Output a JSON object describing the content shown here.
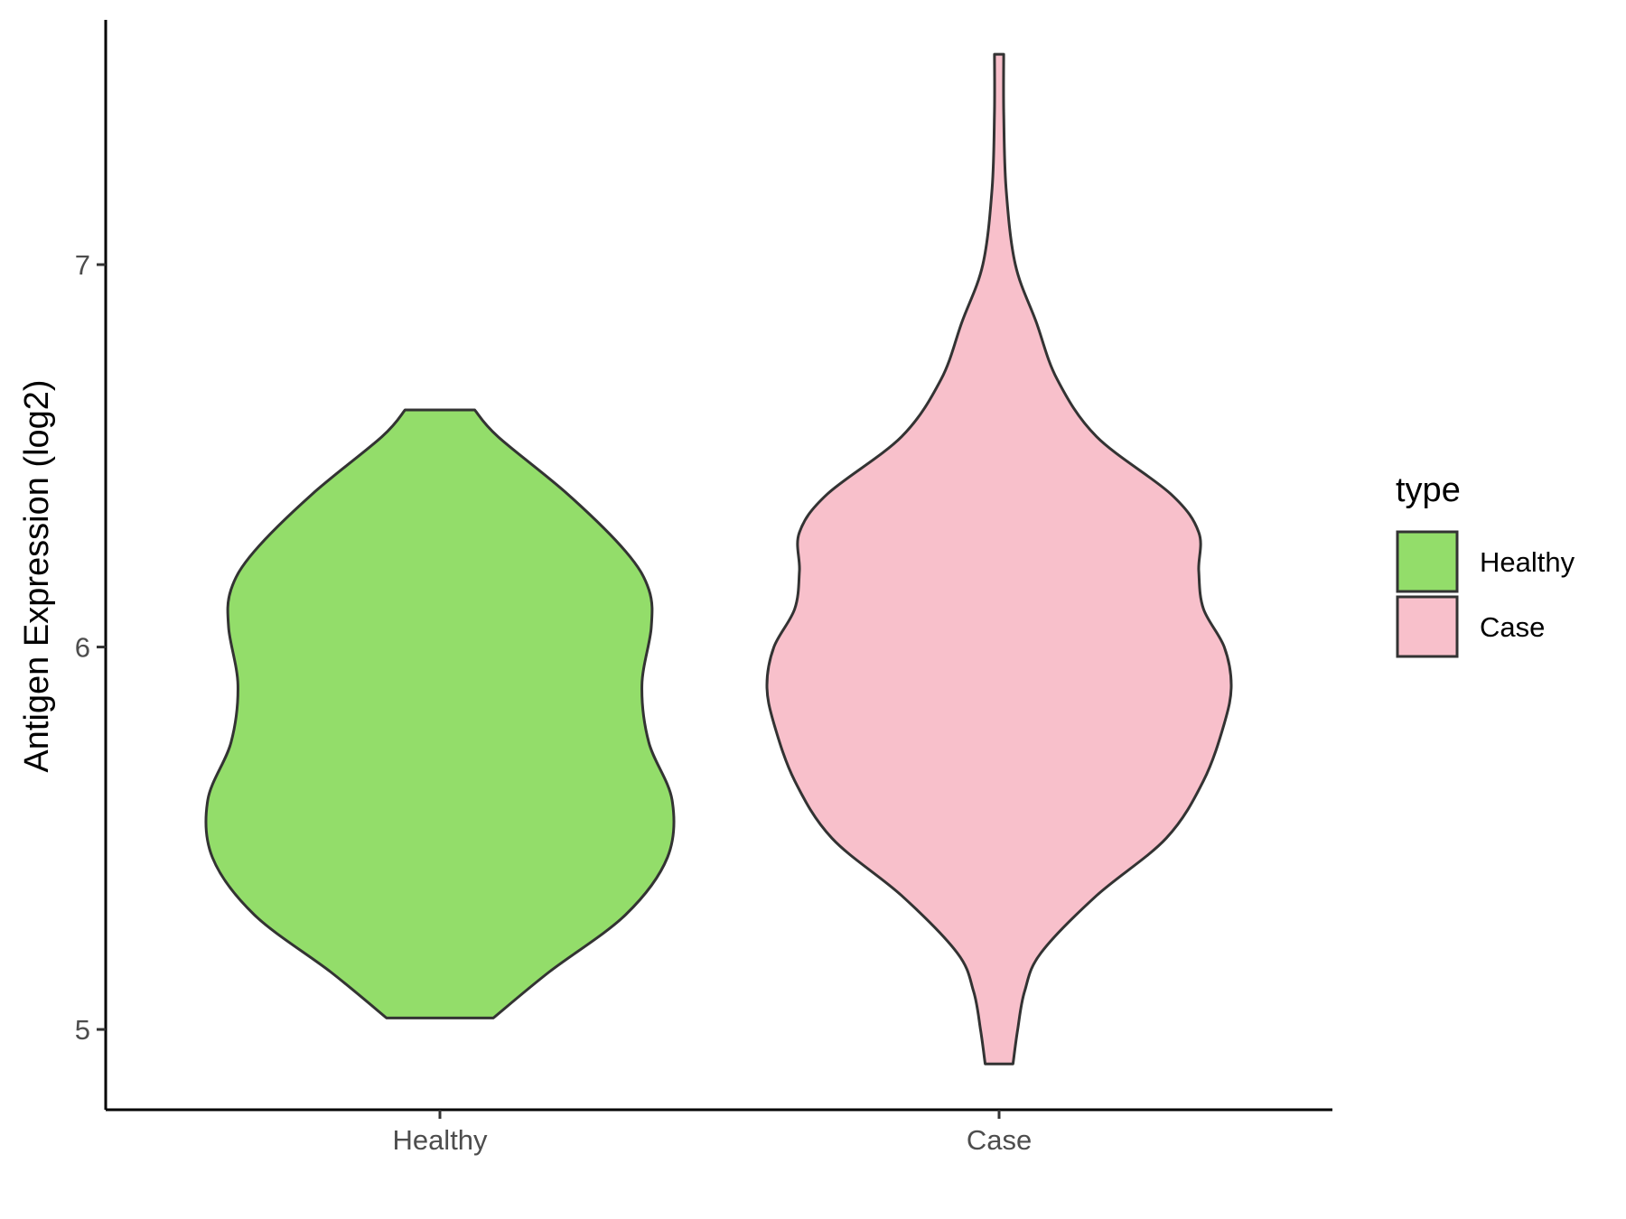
{
  "chart_data": {
    "type": "violin",
    "title": "",
    "xlabel": "",
    "ylabel": "Antigen Expression (log2)",
    "categories": [
      "Healthy",
      "Case"
    ],
    "ylim": [
      4.79,
      7.64
    ],
    "yticks": [
      5,
      6,
      7
    ],
    "grid": false,
    "legend": {
      "title": "type",
      "placement": "right",
      "entries": [
        {
          "label": "Healthy",
          "color": "#93DD6A"
        },
        {
          "label": "Case",
          "color": "#F8C0CB"
        }
      ]
    },
    "series": [
      {
        "category": "Healthy",
        "color": "#93DD6A",
        "min": 5.03,
        "max": 6.62,
        "density": [
          [
            5.03,
            0.23
          ],
          [
            5.15,
            0.47
          ],
          [
            5.3,
            0.8
          ],
          [
            5.45,
            0.98
          ],
          [
            5.6,
            1.0
          ],
          [
            5.75,
            0.9
          ],
          [
            5.9,
            0.87
          ],
          [
            6.05,
            0.91
          ],
          [
            6.15,
            0.9
          ],
          [
            6.25,
            0.8
          ],
          [
            6.4,
            0.55
          ],
          [
            6.55,
            0.25
          ],
          [
            6.62,
            0.15
          ]
        ]
      },
      {
        "category": "Case",
        "color": "#F8C0CB",
        "min": 4.91,
        "max": 7.55,
        "density": [
          [
            4.91,
            0.06
          ],
          [
            5.0,
            0.08
          ],
          [
            5.1,
            0.11
          ],
          [
            5.2,
            0.18
          ],
          [
            5.35,
            0.42
          ],
          [
            5.5,
            0.72
          ],
          [
            5.65,
            0.88
          ],
          [
            5.8,
            0.97
          ],
          [
            5.9,
            1.0
          ],
          [
            6.0,
            0.97
          ],
          [
            6.1,
            0.88
          ],
          [
            6.2,
            0.86
          ],
          [
            6.3,
            0.86
          ],
          [
            6.4,
            0.74
          ],
          [
            6.55,
            0.42
          ],
          [
            6.7,
            0.25
          ],
          [
            6.85,
            0.16
          ],
          [
            7.0,
            0.07
          ],
          [
            7.2,
            0.03
          ],
          [
            7.4,
            0.02
          ],
          [
            7.55,
            0.02
          ]
        ]
      }
    ]
  }
}
